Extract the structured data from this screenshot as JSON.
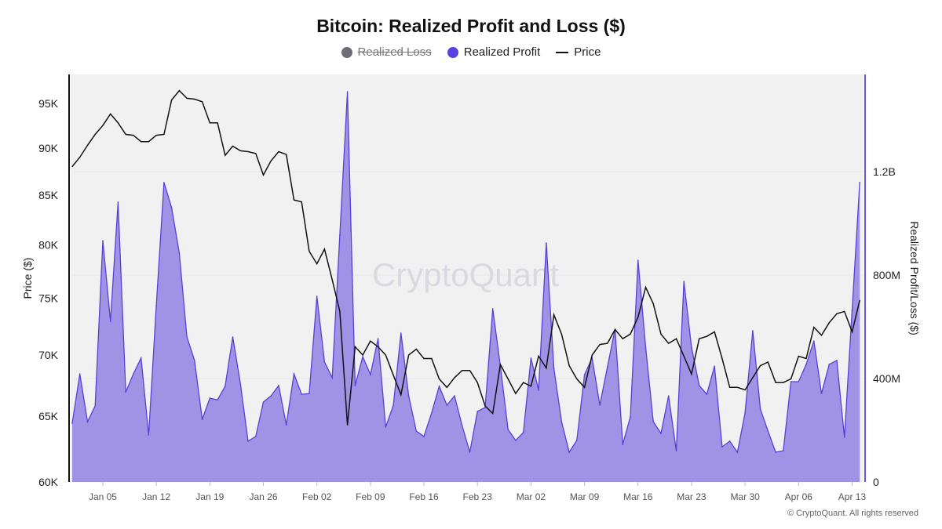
{
  "chart_data": {
    "type": "area+line",
    "title": "Bitcoin: Realized Profit and Loss ($)",
    "legend": [
      {
        "name": "Realized Loss",
        "color": "#6e6e78",
        "hidden": true
      },
      {
        "name": "Realized Profit",
        "color": "#5b3fe0"
      },
      {
        "name": "Price",
        "color": "#111111"
      }
    ],
    "legend_placement": "top",
    "ylabel_left": "Price ($)",
    "ylabel_right": "Realized Profit/Loss ($)",
    "left_axis": {
      "scale": "log",
      "range": [
        60000,
        98000
      ],
      "ticks": [
        60000,
        65000,
        70000,
        75000,
        80000,
        85000,
        90000,
        95000
      ],
      "tick_labels": [
        "60K",
        "65K",
        "70K",
        "75K",
        "80K",
        "85K",
        "90K",
        "95K"
      ]
    },
    "right_axis": {
      "scale": "linear",
      "range": [
        0,
        1580000000
      ],
      "ticks": [
        0,
        400000000,
        800000000,
        1200000000
      ],
      "tick_labels": [
        "0",
        "400M",
        "800M",
        "1.2B"
      ]
    },
    "x_tick_labels": [
      "Jan 05",
      "Jan 12",
      "Jan 19",
      "Jan 26",
      "Feb 02",
      "Feb 09",
      "Feb 16",
      "Feb 23",
      "Mar 02",
      "Mar 09",
      "Mar 16",
      "Mar 23",
      "Mar 30",
      "Apr 06",
      "Apr 13"
    ],
    "grid": true,
    "x": [
      "Jan 01",
      "Jan 02",
      "Jan 03",
      "Jan 04",
      "Jan 05",
      "Jan 06",
      "Jan 07",
      "Jan 08",
      "Jan 09",
      "Jan 10",
      "Jan 11",
      "Jan 12",
      "Jan 13",
      "Jan 14",
      "Jan 15",
      "Jan 16",
      "Jan 17",
      "Jan 18",
      "Jan 19",
      "Jan 20",
      "Jan 21",
      "Jan 22",
      "Jan 23",
      "Jan 24",
      "Jan 25",
      "Jan 26",
      "Jan 27",
      "Jan 28",
      "Jan 29",
      "Jan 30",
      "Jan 31",
      "Feb 01",
      "Feb 02",
      "Feb 03",
      "Feb 04",
      "Feb 05",
      "Feb 06",
      "Feb 07",
      "Feb 08",
      "Feb 09",
      "Feb 10",
      "Feb 11",
      "Feb 12",
      "Feb 13",
      "Feb 14",
      "Feb 15",
      "Feb 16",
      "Feb 17",
      "Feb 18",
      "Feb 19",
      "Feb 20",
      "Feb 21",
      "Feb 22",
      "Feb 23",
      "Feb 24",
      "Feb 25",
      "Feb 26",
      "Feb 27",
      "Feb 28",
      "Mar 01",
      "Mar 02",
      "Mar 03",
      "Mar 04",
      "Mar 05",
      "Mar 06",
      "Mar 07",
      "Mar 08",
      "Mar 09",
      "Mar 10",
      "Mar 11",
      "Mar 12",
      "Mar 13",
      "Mar 14",
      "Mar 15",
      "Mar 16",
      "Mar 17",
      "Mar 18",
      "Mar 19",
      "Mar 20",
      "Mar 21",
      "Mar 22",
      "Mar 23",
      "Mar 24",
      "Mar 25",
      "Mar 26",
      "Mar 27",
      "Mar 28",
      "Mar 29",
      "Mar 30",
      "Mar 31",
      "Apr 01",
      "Apr 02",
      "Apr 03",
      "Apr 04",
      "Apr 05",
      "Apr 06",
      "Apr 07",
      "Apr 08",
      "Apr 09",
      "Apr 10",
      "Apr 11",
      "Apr 12",
      "Apr 13",
      "Apr 14"
    ],
    "series": [
      {
        "name": "Realized Profit",
        "unit": "M$",
        "values": [
          227,
          418,
          233,
          294,
          933,
          621,
          1082,
          348,
          418,
          479,
          182,
          682,
          1158,
          1061,
          885,
          561,
          470,
          242,
          324,
          318,
          370,
          561,
          379,
          158,
          176,
          309,
          333,
          373,
          221,
          418,
          339,
          342,
          718,
          464,
          403,
          955,
          1509,
          373,
          485,
          415,
          554,
          212,
          297,
          576,
          333,
          197,
          176,
          267,
          370,
          297,
          333,
          218,
          115,
          273,
          288,
          670,
          448,
          203,
          161,
          191,
          479,
          355,
          924,
          439,
          233,
          115,
          161,
          415,
          479,
          297,
          445,
          591,
          145,
          252,
          857,
          521,
          233,
          188,
          333,
          121,
          776,
          521,
          373,
          339,
          448,
          136,
          158,
          115,
          267,
          585,
          282,
          197,
          115,
          121,
          388,
          388,
          455,
          545,
          342,
          455,
          470,
          173,
          664,
          1158
        ]
      },
      {
        "name": "Price",
        "unit": "$",
        "values": [
          88000,
          89000,
          90300,
          91500,
          92500,
          93800,
          92800,
          91500,
          91400,
          90700,
          90700,
          91400,
          91500,
          95400,
          96500,
          95600,
          95500,
          95200,
          92800,
          92800,
          89200,
          90200,
          89700,
          89600,
          89400,
          87100,
          88600,
          89600,
          89300,
          84500,
          84300,
          79400,
          78200,
          79600,
          76700,
          73800,
          64300,
          70700,
          70000,
          71200,
          70700,
          70000,
          68300,
          66700,
          70000,
          70500,
          69700,
          69700,
          68000,
          67300,
          68100,
          68700,
          68700,
          67700,
          65800,
          65200,
          69200,
          68000,
          66800,
          67700,
          67400,
          69900,
          68900,
          73500,
          71800,
          69100,
          68000,
          67300,
          70000,
          70900,
          71000,
          72200,
          71400,
          71800,
          73300,
          76000,
          74500,
          71800,
          71000,
          71400,
          69900,
          68400,
          71400,
          71600,
          72000,
          69700,
          67300,
          67300,
          67100,
          68100,
          69100,
          69400,
          67700,
          67700,
          68000,
          69900,
          69700,
          72400,
          71700,
          72800,
          73600,
          73800,
          72000,
          74800
        ]
      }
    ]
  },
  "watermark": "CryptoQuant",
  "copyright": "© CryptoQuant. All rights reserved",
  "colors": {
    "profit_fill": "#a093e6",
    "profit_line": "#5a3fd6",
    "plot_bg": "#f1f1f1",
    "right_axis": "#6a55d8"
  }
}
